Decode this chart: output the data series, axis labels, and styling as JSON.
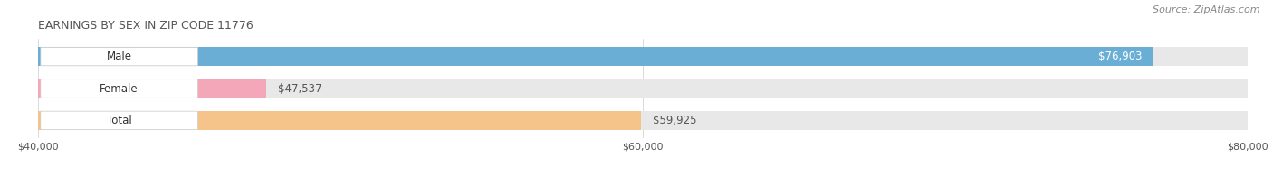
{
  "title": "EARNINGS BY SEX IN ZIP CODE 11776",
  "source": "Source: ZipAtlas.com",
  "categories": [
    "Male",
    "Female",
    "Total"
  ],
  "values": [
    76903,
    47537,
    59925
  ],
  "bar_colors": [
    "#6aaed6",
    "#f4a7b9",
    "#f5c48a"
  ],
  "xmin": 40000,
  "xmax": 80000,
  "xticks": [
    40000,
    60000,
    80000
  ],
  "xtick_labels": [
    "$40,000",
    "$60,000",
    "$80,000"
  ],
  "value_labels": [
    "$76,903",
    "$47,537",
    "$59,925"
  ],
  "value_label_inside": [
    true,
    false,
    false
  ],
  "title_fontsize": 9,
  "source_fontsize": 8,
  "label_fontsize": 8.5,
  "value_fontsize": 8.5,
  "tick_fontsize": 8
}
